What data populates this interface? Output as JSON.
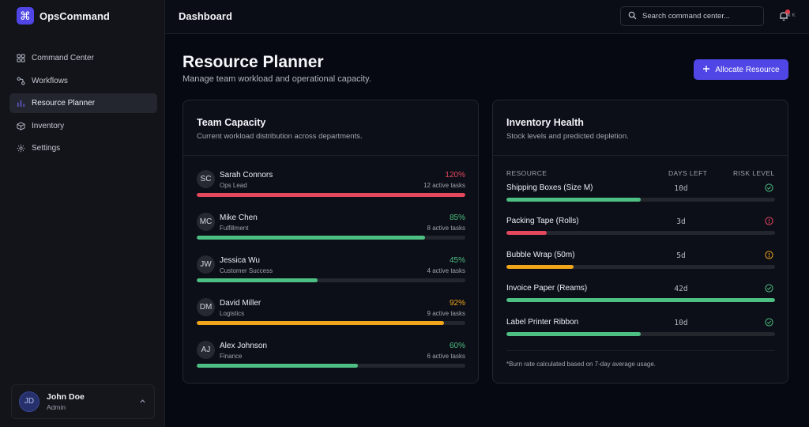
{
  "brand": {
    "logo_glyph": "⌘",
    "name": "OpsCommand",
    "accent": "#5046e5"
  },
  "sidebar": {
    "items": [
      {
        "label": "Command Center",
        "icon": "grid-icon",
        "active": false
      },
      {
        "label": "Workflows",
        "icon": "workflow-icon",
        "active": false
      },
      {
        "label": "Resource Planner",
        "icon": "bar-chart-icon",
        "active": true
      },
      {
        "label": "Inventory",
        "icon": "box-icon",
        "active": false
      },
      {
        "label": "Settings",
        "icon": "gear-icon",
        "active": false
      }
    ]
  },
  "user": {
    "initials": "JD",
    "name": "John Doe",
    "role": "Admin"
  },
  "topbar": {
    "title": "Dashboard",
    "search_placeholder": "Search command center...",
    "shortcut": "⌘ K"
  },
  "page": {
    "title": "Resource Planner",
    "subtitle": "Manage team workload and operational capacity.",
    "allocate_label": "Allocate Resource"
  },
  "team": {
    "title": "Team Capacity",
    "subtitle": "Current workload distribution across departments.",
    "members": [
      {
        "initials": "SC",
        "name": "Sarah Connors",
        "role": "Ops Lead",
        "pct": "120%",
        "tasks": "12 active tasks",
        "load": 1.0,
        "color": "#e5475c"
      },
      {
        "initials": "MC",
        "name": "Mike Chen",
        "role": "Fulfillment",
        "pct": "85%",
        "tasks": "8 active tasks",
        "load": 0.85,
        "color": "#4dbf82"
      },
      {
        "initials": "JW",
        "name": "Jessica Wu",
        "role": "Customer Success",
        "pct": "45%",
        "tasks": "4 active tasks",
        "load": 0.45,
        "color": "#4dbf82"
      },
      {
        "initials": "DM",
        "name": "David Miller",
        "role": "Logistics",
        "pct": "92%",
        "tasks": "9 active tasks",
        "load": 0.92,
        "color": "#f0a51b"
      },
      {
        "initials": "AJ",
        "name": "Alex Johnson",
        "role": "Finance",
        "pct": "60%",
        "tasks": "6 active tasks",
        "load": 0.6,
        "color": "#4dbf82"
      }
    ]
  },
  "inventory": {
    "title": "Inventory Health",
    "subtitle": "Stock levels and predicted depletion.",
    "columns": {
      "resource": "RESOURCE",
      "days": "DAYS LEFT",
      "risk": "RISK LEVEL"
    },
    "items": [
      {
        "name": "Shipping Boxes (Size M)",
        "days": "10d",
        "level": 0.5,
        "color": "#4dbf82",
        "risk_icon": "check-circle-icon"
      },
      {
        "name": "Packing Tape (Rolls)",
        "days": "3d",
        "level": 0.15,
        "color": "#e5475c",
        "risk_icon": "alert-circle-icon"
      },
      {
        "name": "Bubble Wrap (50m)",
        "days": "5d",
        "level": 0.25,
        "color": "#f0a51b",
        "risk_icon": "alert-circle-icon"
      },
      {
        "name": "Invoice Paper (Reams)",
        "days": "42d",
        "level": 1.0,
        "color": "#4dbf82",
        "risk_icon": "check-circle-icon"
      },
      {
        "name": "Label Printer Ribbon",
        "days": "10d",
        "level": 0.5,
        "color": "#4dbf82",
        "risk_icon": "check-circle-icon"
      }
    ],
    "note": "*Burn rate calculated based on 7-day average usage."
  }
}
